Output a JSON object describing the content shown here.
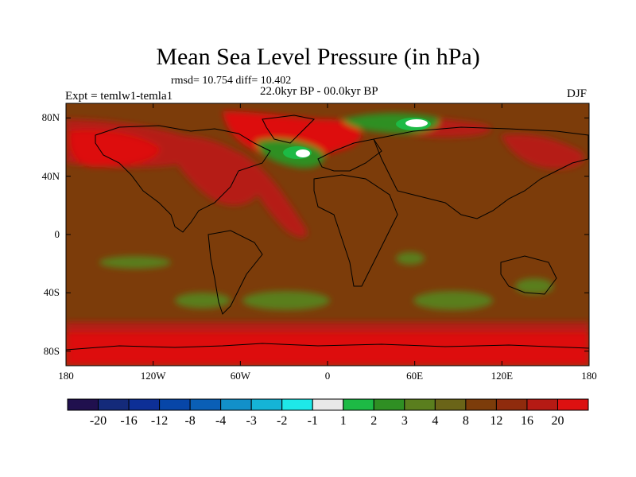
{
  "title": "Mean Sea Level Pressure (in hPa)",
  "stats": "rmsd= 10.754 diff= 10.402",
  "period": "22.0kyr BP - 00.0kyr BP",
  "experiment": "Expt = temlw1-temla1",
  "season": "DJF",
  "map": {
    "projection": "cylindrical-equidistant",
    "lon_range": [
      -180,
      180
    ],
    "lat_range": [
      -90,
      90
    ],
    "lat_ticks": [
      {
        "lat": 80,
        "label": "80N"
      },
      {
        "lat": 40,
        "label": "40N"
      },
      {
        "lat": 0,
        "label": "0"
      },
      {
        "lat": -40,
        "label": "40S"
      },
      {
        "lat": -80,
        "label": "80S"
      }
    ],
    "lon_ticks": [
      {
        "lon": -180,
        "label": "180"
      },
      {
        "lon": -120,
        "label": "120W"
      },
      {
        "lon": -60,
        "label": "60W"
      },
      {
        "lon": 0,
        "label": "0"
      },
      {
        "lon": 60,
        "label": "60E"
      },
      {
        "lon": 120,
        "label": "120E"
      },
      {
        "lon": 180,
        "label": "180"
      }
    ],
    "background_level": "8 to 12"
  },
  "colorbar": {
    "colors": [
      "#20104e",
      "#142a7a",
      "#0d2f96",
      "#0746a8",
      "#0a5fb6",
      "#1290c9",
      "#15b4d6",
      "#1ee8e8",
      "#e8e8e8",
      "#1dba45",
      "#2f8f23",
      "#5a7e1e",
      "#6a6418",
      "#7c3c0a",
      "#8f2b0d",
      "#b51a14",
      "#dd1111"
    ],
    "labels": [
      "-20",
      "-16",
      "-12",
      "-8",
      "-4",
      "-3",
      "-2",
      "-1",
      "1",
      "2",
      "3",
      "4",
      "8",
      "12",
      "16",
      "20"
    ]
  },
  "colors": {
    "background_field": "#7c3c0a",
    "positive_high": "#dd1111",
    "positive_mid": "#b51a14",
    "moderate": "#5a7e1e",
    "green": "#2f8f23",
    "bright_green": "#1dba45",
    "near_zero": "#e8e8e8",
    "coastline": "#000000"
  }
}
